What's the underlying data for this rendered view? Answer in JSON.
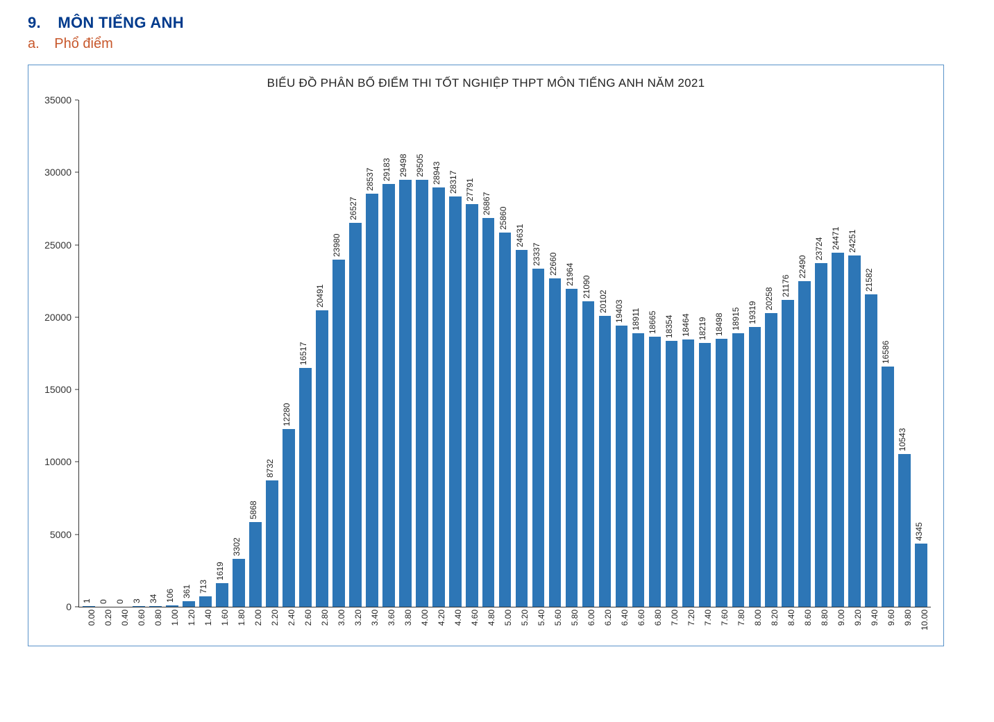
{
  "headings": {
    "section_number": "9.",
    "section_title": "MÔN TIẾNG ANH",
    "sub_letter": "a.",
    "sub_title": "Phổ điểm"
  },
  "chart": {
    "type": "bar",
    "title": "BIỂU ĐỒ PHÂN BỐ ĐIỂM THI TỐT NGHIỆP THPT MÔN TIẾNG ANH NĂM 2021",
    "bar_color": "#2d76b6",
    "border_color": "#5892c9",
    "axis_color": "#333333",
    "text_color": "#222222",
    "background_color": "#ffffff",
    "title_fontsize": 17,
    "axis_label_fontsize": 14,
    "data_label_fontsize": 12,
    "x_label_fontsize": 12,
    "bar_width_ratio": 0.74,
    "ylim": [
      0,
      35000
    ],
    "ytick_step": 5000,
    "yticks": [
      0,
      5000,
      10000,
      15000,
      20000,
      25000,
      30000,
      35000
    ],
    "categories": [
      "0.00",
      "0.20",
      "0.40",
      "0.60",
      "0.80",
      "1.00",
      "1.20",
      "1.40",
      "1.60",
      "1.80",
      "2.00",
      "2.20",
      "2.40",
      "2.60",
      "2.80",
      "3.00",
      "3.20",
      "3.40",
      "3.60",
      "3.80",
      "4.00",
      "4.20",
      "4.40",
      "4.60",
      "4.80",
      "5.00",
      "5.20",
      "5.40",
      "5.60",
      "5.80",
      "6.00",
      "6.20",
      "6.40",
      "6.60",
      "6.80",
      "7.00",
      "7.20",
      "7.40",
      "7.60",
      "7.80",
      "8.00",
      "8.20",
      "8.40",
      "8.60",
      "8.80",
      "9.00",
      "9.20",
      "9.40",
      "9.60",
      "9.80",
      "10.00"
    ],
    "values": [
      1,
      0,
      0,
      3,
      34,
      106,
      361,
      713,
      1619,
      3302,
      5868,
      8732,
      12280,
      16517,
      20491,
      23980,
      26527,
      28537,
      29183,
      29498,
      29505,
      28943,
      28317,
      27791,
      26867,
      25860,
      24631,
      23337,
      22660,
      21964,
      21090,
      20102,
      19403,
      18911,
      18665,
      18354,
      18464,
      18219,
      18498,
      18915,
      19319,
      20258,
      21176,
      22490,
      23724,
      24471,
      24251,
      21582,
      16586,
      10543,
      4345
    ]
  }
}
